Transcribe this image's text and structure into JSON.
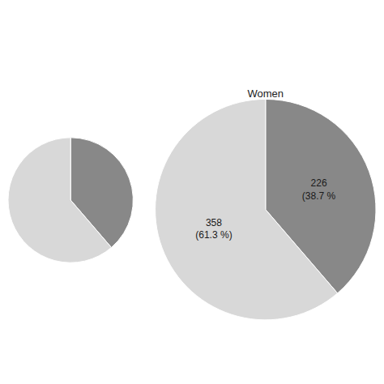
{
  "chart_data": [
    {
      "type": "pie",
      "title": "Women",
      "values": [
        226,
        358
      ],
      "value_labels": [
        "226\n(38.7 %",
        "358\n(61.3 %)"
      ],
      "colors": [
        "#888888",
        "#d8d8d8"
      ],
      "data_labels": true
    },
    {
      "type": "pie",
      "values": [
        226,
        358
      ],
      "colors": [
        "#888888",
        "#d8d8d8"
      ],
      "data_labels": false
    }
  ]
}
